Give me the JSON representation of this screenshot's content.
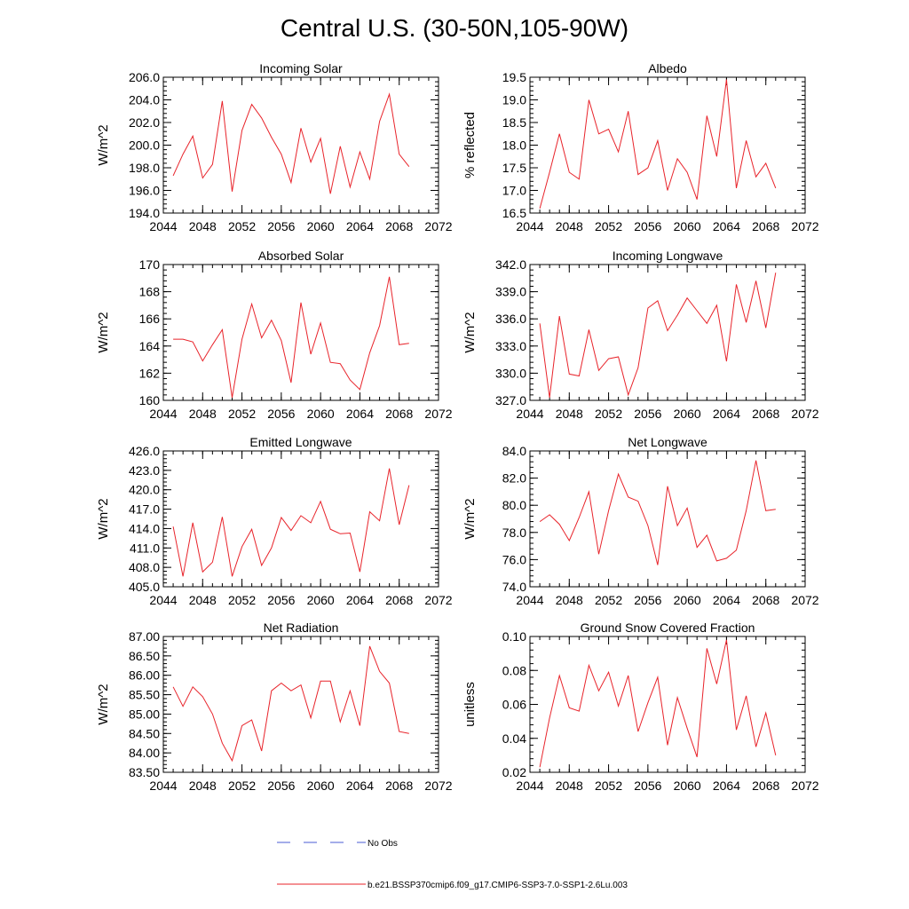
{
  "figure": {
    "title": "Central U.S. (30-50N,105-90W)"
  },
  "legend": {
    "items": [
      {
        "label": "No Obs",
        "color": "#4a5bd4",
        "style": "dashed"
      },
      {
        "label": "b.e21.BSSP370cmip6.f09_g17.CMIP6-SSP3-7.0-SSP1-2.6Lu.003",
        "color": "#e8232a",
        "style": "solid"
      }
    ]
  },
  "chart_data": [
    {
      "id": "incoming-solar",
      "type": "line",
      "title": "Incoming Solar",
      "xlabel": "",
      "ylabel": "W/m^2",
      "xlim": [
        2044,
        2072
      ],
      "xticks": [
        "2044",
        "2048",
        "2052",
        "2056",
        "2060",
        "2064",
        "2068",
        "2072"
      ],
      "ylim": [
        194,
        206
      ],
      "yticks": [
        "194.0",
        "196.0",
        "198.0",
        "200.0",
        "202.0",
        "204.0",
        "206.0"
      ],
      "yminor": 0.4,
      "color": "#e8232a",
      "x": [
        2045,
        2046,
        2047,
        2048,
        2049,
        2050,
        2051,
        2052,
        2053,
        2054,
        2055,
        2056,
        2057,
        2058,
        2059,
        2060,
        2061,
        2062,
        2063,
        2064,
        2065,
        2066,
        2067,
        2068,
        2069
      ],
      "y": [
        197.3,
        199.2,
        200.8,
        197.1,
        198.3,
        203.9,
        195.9,
        201.3,
        203.6,
        202.4,
        200.7,
        199.2,
        196.7,
        201.5,
        198.5,
        200.6,
        195.7,
        199.9,
        196.3,
        199.4,
        197.0,
        202.1,
        204.5,
        199.2,
        198.1
      ]
    },
    {
      "id": "albedo",
      "type": "line",
      "title": "Albedo",
      "xlabel": "",
      "ylabel": "% reflected",
      "xlim": [
        2044,
        2072
      ],
      "xticks": [
        "2044",
        "2048",
        "2052",
        "2056",
        "2060",
        "2064",
        "2068",
        "2072"
      ],
      "ylim": [
        16.5,
        19.5
      ],
      "yticks": [
        "16.5",
        "17.0",
        "17.5",
        "18.0",
        "18.5",
        "19.0",
        "19.5"
      ],
      "yminor": 0.1,
      "color": "#e8232a",
      "x": [
        2045,
        2046,
        2047,
        2048,
        2049,
        2050,
        2051,
        2052,
        2053,
        2054,
        2055,
        2056,
        2057,
        2058,
        2059,
        2060,
        2061,
        2062,
        2063,
        2064,
        2065,
        2066,
        2067,
        2068,
        2069
      ],
      "y": [
        16.6,
        17.4,
        18.25,
        17.4,
        17.25,
        19.0,
        18.25,
        18.35,
        17.85,
        18.75,
        17.35,
        17.5,
        18.1,
        17.0,
        17.7,
        17.4,
        16.8,
        18.65,
        17.75,
        19.45,
        17.05,
        18.1,
        17.3,
        17.6,
        17.05
      ]
    },
    {
      "id": "absorbed-solar",
      "type": "line",
      "title": "Absorbed Solar",
      "xlabel": "",
      "ylabel": "W/m^2",
      "xlim": [
        2044,
        2072
      ],
      "xticks": [
        "2044",
        "2048",
        "2052",
        "2056",
        "2060",
        "2064",
        "2068",
        "2072"
      ],
      "ylim": [
        160,
        170
      ],
      "yticks": [
        "160",
        "162",
        "164",
        "166",
        "168",
        "170"
      ],
      "yminor": 0.4,
      "color": "#e8232a",
      "x": [
        2045,
        2046,
        2047,
        2048,
        2049,
        2050,
        2051,
        2052,
        2053,
        2054,
        2055,
        2056,
        2057,
        2058,
        2059,
        2060,
        2061,
        2062,
        2063,
        2064,
        2065,
        2066,
        2067,
        2068,
        2069
      ],
      "y": [
        164.5,
        164.5,
        164.3,
        162.9,
        164.1,
        165.2,
        160.2,
        164.5,
        167.1,
        164.6,
        165.9,
        164.4,
        161.3,
        167.2,
        163.4,
        165.7,
        162.8,
        162.7,
        161.5,
        160.8,
        163.5,
        165.5,
        169.1,
        164.1,
        164.2
      ]
    },
    {
      "id": "incoming-longwave",
      "type": "line",
      "title": "Incoming Longwave",
      "xlabel": "",
      "ylabel": "W/m^2",
      "xlim": [
        2044,
        2072
      ],
      "xticks": [
        "2044",
        "2048",
        "2052",
        "2056",
        "2060",
        "2064",
        "2068",
        "2072"
      ],
      "ylim": [
        327,
        342
      ],
      "yticks": [
        "327.0",
        "330.0",
        "333.0",
        "336.0",
        "339.0",
        "342.0"
      ],
      "yminor": 0.6,
      "color": "#e8232a",
      "x": [
        2045,
        2046,
        2047,
        2048,
        2049,
        2050,
        2051,
        2052,
        2053,
        2054,
        2055,
        2056,
        2057,
        2058,
        2059,
        2060,
        2061,
        2062,
        2063,
        2064,
        2065,
        2066,
        2067,
        2068,
        2069
      ],
      "y": [
        335.5,
        327.3,
        336.3,
        329.9,
        329.7,
        334.8,
        330.3,
        331.6,
        331.8,
        327.6,
        330.6,
        337.2,
        338.0,
        334.7,
        336.4,
        338.3,
        336.9,
        335.5,
        337.5,
        331.3,
        339.8,
        335.6,
        340.2,
        335.0,
        341.1
      ]
    },
    {
      "id": "emitted-longwave",
      "type": "line",
      "title": "Emitted Longwave",
      "xlabel": "",
      "ylabel": "W/m^2",
      "xlim": [
        2044,
        2072
      ],
      "xticks": [
        "2044",
        "2048",
        "2052",
        "2056",
        "2060",
        "2064",
        "2068",
        "2072"
      ],
      "ylim": [
        405,
        426
      ],
      "yticks": [
        "405.0",
        "408.0",
        "411.0",
        "414.0",
        "417.0",
        "420.0",
        "423.0",
        "426.0"
      ],
      "yminor": 0.6,
      "color": "#e8232a",
      "x": [
        2045,
        2046,
        2047,
        2048,
        2049,
        2050,
        2051,
        2052,
        2053,
        2054,
        2055,
        2056,
        2057,
        2058,
        2059,
        2060,
        2061,
        2062,
        2063,
        2064,
        2065,
        2066,
        2067,
        2068,
        2069
      ],
      "y": [
        414.3,
        406.6,
        414.9,
        407.3,
        408.8,
        415.8,
        406.6,
        411.2,
        413.9,
        408.3,
        411.0,
        415.7,
        413.7,
        416.0,
        414.9,
        418.2,
        413.9,
        413.2,
        413.3,
        407.3,
        416.6,
        415.2,
        423.3,
        414.6,
        420.7
      ]
    },
    {
      "id": "net-longwave",
      "type": "line",
      "title": "Net Longwave",
      "xlabel": "",
      "ylabel": "W/m^2",
      "xlim": [
        2044,
        2072
      ],
      "xticks": [
        "2044",
        "2048",
        "2052",
        "2056",
        "2060",
        "2064",
        "2068",
        "2072"
      ],
      "ylim": [
        74,
        84
      ],
      "yticks": [
        "74.0",
        "76.0",
        "78.0",
        "80.0",
        "82.0",
        "84.0"
      ],
      "yminor": 0.4,
      "color": "#e8232a",
      "x": [
        2045,
        2046,
        2047,
        2048,
        2049,
        2050,
        2051,
        2052,
        2053,
        2054,
        2055,
        2056,
        2057,
        2058,
        2059,
        2060,
        2061,
        2062,
        2063,
        2064,
        2065,
        2066,
        2067,
        2068,
        2069
      ],
      "y": [
        78.8,
        79.3,
        78.6,
        77.4,
        79.1,
        81.0,
        76.4,
        79.6,
        82.3,
        80.6,
        80.3,
        78.5,
        75.6,
        81.4,
        78.5,
        79.8,
        76.9,
        77.8,
        75.9,
        76.1,
        76.7,
        79.6,
        83.3,
        79.6,
        79.7
      ]
    },
    {
      "id": "net-radiation",
      "type": "line",
      "title": "Net Radiation",
      "xlabel": "",
      "ylabel": "W/m^2",
      "xlim": [
        2044,
        2072
      ],
      "xticks": [
        "2044",
        "2048",
        "2052",
        "2056",
        "2060",
        "2064",
        "2068",
        "2072"
      ],
      "ylim": [
        83.5,
        87.0
      ],
      "yticks": [
        "83.50",
        "84.00",
        "84.50",
        "85.00",
        "85.50",
        "86.00",
        "86.50",
        "87.00"
      ],
      "yminor": 0.1,
      "color": "#e8232a",
      "x": [
        2045,
        2046,
        2047,
        2048,
        2049,
        2050,
        2051,
        2052,
        2053,
        2054,
        2055,
        2056,
        2057,
        2058,
        2059,
        2060,
        2061,
        2062,
        2063,
        2064,
        2065,
        2066,
        2067,
        2068,
        2069
      ],
      "y": [
        85.7,
        85.2,
        85.7,
        85.45,
        85.0,
        84.25,
        83.8,
        84.7,
        84.85,
        84.05,
        85.6,
        85.8,
        85.6,
        85.75,
        84.9,
        85.85,
        85.85,
        84.8,
        85.6,
        84.7,
        86.75,
        86.1,
        85.8,
        84.55,
        84.5
      ]
    },
    {
      "id": "ground-snow-covered-fraction",
      "type": "line",
      "title": "Ground Snow Covered Fraction",
      "xlabel": "",
      "ylabel": "unitless",
      "xlim": [
        2044,
        2072
      ],
      "xticks": [
        "2044",
        "2048",
        "2052",
        "2056",
        "2060",
        "2064",
        "2068",
        "2072"
      ],
      "ylim": [
        0.02,
        0.1
      ],
      "yticks": [
        "0.02",
        "0.04",
        "0.06",
        "0.08",
        "0.10"
      ],
      "yminor": 0.004,
      "color": "#e8232a",
      "x": [
        2045,
        2046,
        2047,
        2048,
        2049,
        2050,
        2051,
        2052,
        2053,
        2054,
        2055,
        2056,
        2057,
        2058,
        2059,
        2060,
        2061,
        2062,
        2063,
        2064,
        2065,
        2066,
        2067,
        2068,
        2069
      ],
      "y": [
        0.023,
        0.052,
        0.077,
        0.058,
        0.056,
        0.083,
        0.068,
        0.079,
        0.059,
        0.077,
        0.044,
        0.061,
        0.076,
        0.036,
        0.064,
        0.046,
        0.029,
        0.093,
        0.072,
        0.098,
        0.045,
        0.065,
        0.035,
        0.055,
        0.03
      ]
    }
  ]
}
